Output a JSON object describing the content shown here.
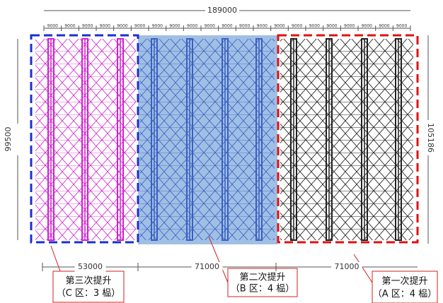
{
  "dimensions": {
    "total": "189000",
    "spans": [
      "9000",
      "9000",
      "9000",
      "9000",
      "9000",
      "9000",
      "9000",
      "9000",
      "9000",
      "9000",
      "9000",
      "9000",
      "9000",
      "9000",
      "9000",
      "9000",
      "9000",
      "9000",
      "9000",
      "9000",
      "9000"
    ],
    "left": "99500",
    "right": "105186",
    "bottom": [
      "53000",
      "71000",
      "71000"
    ]
  },
  "callouts": [
    {
      "title": "第三次提升",
      "detail": "（C 区：3 榀）"
    },
    {
      "title": "第二次提升",
      "detail": "（B 区：4 榀）"
    },
    {
      "title": "第一次提升",
      "detail": "（A 区：4 榀）"
    }
  ]
}
